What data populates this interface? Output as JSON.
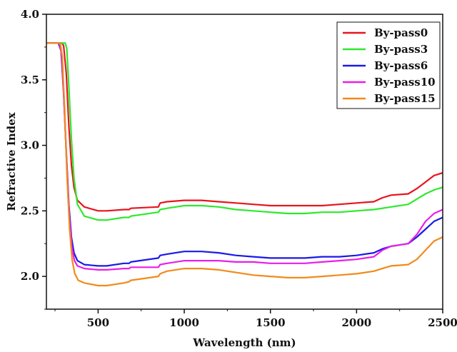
{
  "chart_data": {
    "type": "line",
    "xlabel": "Wavelength (nm)",
    "ylabel": "Refractive Index",
    "xlim": [
      200,
      2500
    ],
    "ylim": [
      1.75,
      4.0
    ],
    "x_ticks": [
      500,
      1000,
      1500,
      2000,
      2500
    ],
    "x_tick_labels": [
      "500",
      "1000",
      "1500",
      "2000",
      "2500"
    ],
    "y_ticks": [
      2.0,
      2.5,
      3.0,
      3.5,
      4.0
    ],
    "y_tick_labels": [
      "2.0",
      "2.5",
      "3.0",
      "3.5",
      "4.0"
    ],
    "legend_position": "top-right",
    "grid": false,
    "series": [
      {
        "name": "By-pass0",
        "color": "#e8141c",
        "points": [
          [
            200,
            3.78
          ],
          [
            290,
            3.78
          ],
          [
            300,
            3.76
          ],
          [
            315,
            3.55
          ],
          [
            330,
            3.15
          ],
          [
            345,
            2.85
          ],
          [
            360,
            2.68
          ],
          [
            380,
            2.58
          ],
          [
            420,
            2.53
          ],
          [
            500,
            2.5
          ],
          [
            550,
            2.5
          ],
          [
            650,
            2.51
          ],
          [
            680,
            2.51
          ],
          [
            690,
            2.52
          ],
          [
            850,
            2.53
          ],
          [
            860,
            2.56
          ],
          [
            900,
            2.57
          ],
          [
            1000,
            2.58
          ],
          [
            1100,
            2.58
          ],
          [
            1200,
            2.57
          ],
          [
            1300,
            2.56
          ],
          [
            1400,
            2.55
          ],
          [
            1500,
            2.54
          ],
          [
            1600,
            2.54
          ],
          [
            1700,
            2.54
          ],
          [
            1800,
            2.54
          ],
          [
            1900,
            2.55
          ],
          [
            2000,
            2.56
          ],
          [
            2100,
            2.57
          ],
          [
            2150,
            2.6
          ],
          [
            2200,
            2.62
          ],
          [
            2300,
            2.63
          ],
          [
            2350,
            2.67
          ],
          [
            2400,
            2.72
          ],
          [
            2450,
            2.77
          ],
          [
            2500,
            2.79
          ]
        ]
      },
      {
        "name": "By-pass3",
        "color": "#2ee82e",
        "points": [
          [
            200,
            3.78
          ],
          [
            300,
            3.78
          ],
          [
            310,
            3.78
          ],
          [
            318,
            3.74
          ],
          [
            330,
            3.45
          ],
          [
            345,
            3.05
          ],
          [
            360,
            2.75
          ],
          [
            380,
            2.55
          ],
          [
            420,
            2.46
          ],
          [
            500,
            2.43
          ],
          [
            550,
            2.43
          ],
          [
            650,
            2.45
          ],
          [
            680,
            2.45
          ],
          [
            690,
            2.46
          ],
          [
            850,
            2.49
          ],
          [
            860,
            2.51
          ],
          [
            900,
            2.52
          ],
          [
            1000,
            2.54
          ],
          [
            1100,
            2.54
          ],
          [
            1200,
            2.53
          ],
          [
            1300,
            2.51
          ],
          [
            1400,
            2.5
          ],
          [
            1500,
            2.49
          ],
          [
            1600,
            2.48
          ],
          [
            1700,
            2.48
          ],
          [
            1800,
            2.49
          ],
          [
            1900,
            2.49
          ],
          [
            2000,
            2.5
          ],
          [
            2100,
            2.51
          ],
          [
            2150,
            2.52
          ],
          [
            2200,
            2.53
          ],
          [
            2300,
            2.55
          ],
          [
            2350,
            2.59
          ],
          [
            2400,
            2.63
          ],
          [
            2450,
            2.66
          ],
          [
            2500,
            2.68
          ]
        ]
      },
      {
        "name": "By-pass6",
        "color": "#1a1ae6",
        "points": [
          [
            200,
            3.78
          ],
          [
            270,
            3.78
          ],
          [
            285,
            3.72
          ],
          [
            300,
            3.4
          ],
          [
            315,
            2.95
          ],
          [
            330,
            2.55
          ],
          [
            345,
            2.3
          ],
          [
            360,
            2.18
          ],
          [
            380,
            2.12
          ],
          [
            420,
            2.09
          ],
          [
            500,
            2.08
          ],
          [
            550,
            2.08
          ],
          [
            650,
            2.1
          ],
          [
            680,
            2.1
          ],
          [
            690,
            2.11
          ],
          [
            850,
            2.14
          ],
          [
            860,
            2.16
          ],
          [
            900,
            2.17
          ],
          [
            1000,
            2.19
          ],
          [
            1100,
            2.19
          ],
          [
            1200,
            2.18
          ],
          [
            1300,
            2.16
          ],
          [
            1400,
            2.15
          ],
          [
            1500,
            2.14
          ],
          [
            1600,
            2.14
          ],
          [
            1700,
            2.14
          ],
          [
            1800,
            2.15
          ],
          [
            1900,
            2.15
          ],
          [
            2000,
            2.16
          ],
          [
            2100,
            2.18
          ],
          [
            2150,
            2.21
          ],
          [
            2200,
            2.23
          ],
          [
            2300,
            2.25
          ],
          [
            2350,
            2.3
          ],
          [
            2400,
            2.36
          ],
          [
            2450,
            2.42
          ],
          [
            2500,
            2.45
          ]
        ]
      },
      {
        "name": "By-pass10",
        "color": "#e81ee8",
        "points": [
          [
            200,
            3.78
          ],
          [
            275,
            3.78
          ],
          [
            288,
            3.7
          ],
          [
            302,
            3.35
          ],
          [
            318,
            2.85
          ],
          [
            333,
            2.45
          ],
          [
            348,
            2.22
          ],
          [
            363,
            2.12
          ],
          [
            380,
            2.08
          ],
          [
            420,
            2.06
          ],
          [
            500,
            2.05
          ],
          [
            550,
            2.05
          ],
          [
            650,
            2.06
          ],
          [
            680,
            2.06
          ],
          [
            690,
            2.07
          ],
          [
            850,
            2.07
          ],
          [
            860,
            2.09
          ],
          [
            900,
            2.1
          ],
          [
            1000,
            2.12
          ],
          [
            1100,
            2.12
          ],
          [
            1200,
            2.12
          ],
          [
            1300,
            2.11
          ],
          [
            1400,
            2.11
          ],
          [
            1500,
            2.1
          ],
          [
            1600,
            2.1
          ],
          [
            1700,
            2.1
          ],
          [
            1800,
            2.11
          ],
          [
            1900,
            2.12
          ],
          [
            2000,
            2.13
          ],
          [
            2100,
            2.15
          ],
          [
            2150,
            2.2
          ],
          [
            2200,
            2.23
          ],
          [
            2300,
            2.25
          ],
          [
            2350,
            2.32
          ],
          [
            2400,
            2.42
          ],
          [
            2450,
            2.48
          ],
          [
            2500,
            2.51
          ]
        ]
      },
      {
        "name": "By-pass15",
        "color": "#f28a1a",
        "points": [
          [
            200,
            3.78
          ],
          [
            280,
            3.78
          ],
          [
            292,
            3.68
          ],
          [
            305,
            3.3
          ],
          [
            320,
            2.75
          ],
          [
            335,
            2.35
          ],
          [
            350,
            2.12
          ],
          [
            365,
            2.02
          ],
          [
            385,
            1.97
          ],
          [
            420,
            1.95
          ],
          [
            500,
            1.93
          ],
          [
            550,
            1.93
          ],
          [
            650,
            1.95
          ],
          [
            680,
            1.96
          ],
          [
            690,
            1.97
          ],
          [
            850,
            2.0
          ],
          [
            860,
            2.02
          ],
          [
            900,
            2.04
          ],
          [
            1000,
            2.06
          ],
          [
            1100,
            2.06
          ],
          [
            1200,
            2.05
          ],
          [
            1300,
            2.03
          ],
          [
            1400,
            2.01
          ],
          [
            1500,
            2.0
          ],
          [
            1600,
            1.99
          ],
          [
            1700,
            1.99
          ],
          [
            1800,
            2.0
          ],
          [
            1900,
            2.01
          ],
          [
            2000,
            2.02
          ],
          [
            2100,
            2.04
          ],
          [
            2150,
            2.06
          ],
          [
            2200,
            2.08
          ],
          [
            2300,
            2.09
          ],
          [
            2350,
            2.13
          ],
          [
            2400,
            2.2
          ],
          [
            2450,
            2.27
          ],
          [
            2500,
            2.3
          ]
        ]
      }
    ]
  }
}
